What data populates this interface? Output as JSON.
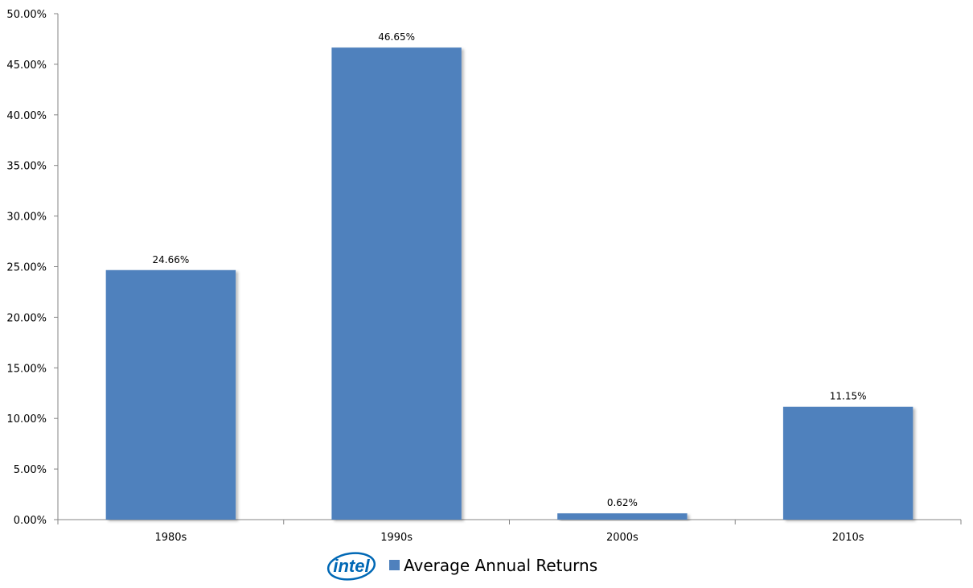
{
  "chart_data": {
    "type": "bar",
    "categories": [
      "1980s",
      "1990s",
      "2000s",
      "2010s"
    ],
    "series": [
      {
        "name": "Average Annual Returns",
        "values": [
          24.66,
          46.65,
          0.62,
          11.15
        ],
        "value_labels": [
          "24.66%",
          "46.65%",
          "0.62%",
          "11.15%"
        ]
      }
    ],
    "title": "",
    "xlabel": "",
    "ylabel": "",
    "ylim": [
      0,
      50
    ],
    "yticks": [
      0,
      5,
      10,
      15,
      20,
      25,
      30,
      35,
      40,
      45,
      50
    ],
    "ytick_labels": [
      "0.00%",
      "5.00%",
      "10.00%",
      "15.00%",
      "20.00%",
      "25.00%",
      "30.00%",
      "35.00%",
      "40.00%",
      "45.00%",
      "50.00%"
    ],
    "grid": false,
    "legend_position": "bottom",
    "bar_color": "#4F81BD",
    "axis_color": "#868686"
  },
  "logo": {
    "text": "intel",
    "icon": "intel-logo-icon",
    "color": "#0068B5"
  }
}
